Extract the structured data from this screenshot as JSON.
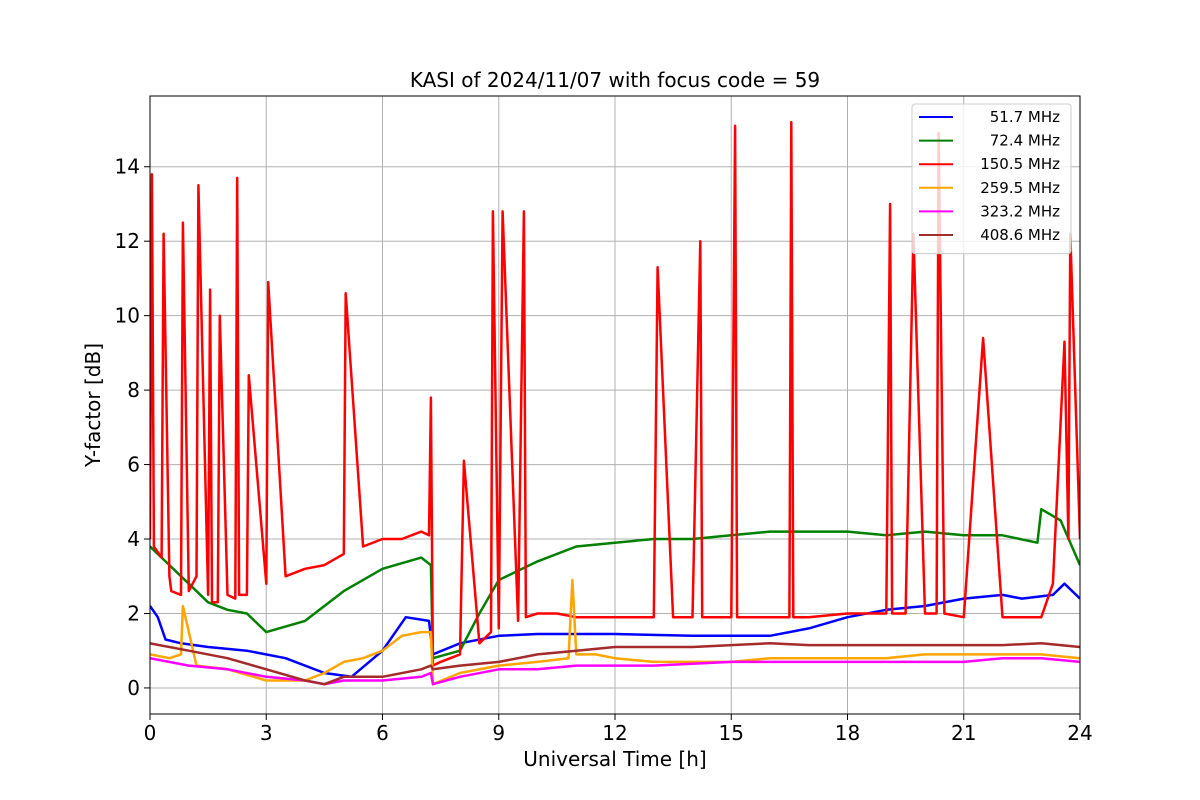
{
  "chart_data": {
    "type": "line",
    "title": "KASI of 2024/11/07 with focus code = 59",
    "xlabel": "Universal Time [h]",
    "ylabel": "Y-factor [dB]",
    "xlim": [
      0,
      24
    ],
    "ylim": [
      -0.7,
      15.9
    ],
    "xticks": [
      0,
      3,
      6,
      9,
      12,
      15,
      18,
      21,
      24
    ],
    "yticks": [
      0,
      2,
      4,
      6,
      8,
      10,
      12,
      14
    ],
    "grid": true,
    "legend_position": "top-right",
    "series": [
      {
        "name": "51.7 MHz",
        "color": "#0000ff",
        "x": [
          0,
          0.2,
          0.4,
          0.8,
          1.5,
          2.5,
          3.5,
          4.5,
          5.2,
          6,
          6.6,
          7.2,
          7.3,
          8,
          9,
          10,
          12,
          14,
          16,
          17,
          18,
          19,
          20,
          21,
          22,
          22.5,
          23.3,
          23.6,
          24
        ],
        "y": [
          2.2,
          1.9,
          1.3,
          1.2,
          1.1,
          1.0,
          0.8,
          0.4,
          0.3,
          1.0,
          1.9,
          1.8,
          0.9,
          1.2,
          1.4,
          1.45,
          1.45,
          1.4,
          1.4,
          1.6,
          1.9,
          2.1,
          2.2,
          2.4,
          2.5,
          2.4,
          2.5,
          2.8,
          2.4
        ]
      },
      {
        "name": "72.4 MHz",
        "color": "#008000",
        "x": [
          0,
          0.5,
          1,
          1.5,
          2,
          2.5,
          3,
          4,
          5,
          6,
          7,
          7.25,
          7.3,
          8,
          8.5,
          9,
          10,
          11,
          12,
          13,
          14,
          15,
          16,
          17,
          18,
          19,
          20,
          21,
          22,
          22.9,
          23,
          23.5,
          24
        ],
        "y": [
          3.8,
          3.3,
          2.8,
          2.3,
          2.1,
          2.0,
          1.5,
          1.8,
          2.6,
          3.2,
          3.5,
          3.3,
          0.8,
          1.0,
          2.0,
          2.9,
          3.4,
          3.8,
          3.9,
          4.0,
          4.0,
          4.1,
          4.2,
          4.2,
          4.2,
          4.1,
          4.2,
          4.1,
          4.1,
          3.9,
          4.8,
          4.5,
          3.3
        ]
      },
      {
        "name": "150.5 MHz",
        "color": "#ff0000",
        "x": [
          0,
          0.05,
          0.1,
          0.3,
          0.35,
          0.5,
          0.55,
          0.8,
          0.85,
          1.0,
          1.2,
          1.25,
          1.5,
          1.55,
          1.6,
          1.75,
          1.8,
          2.0,
          2.2,
          2.25,
          2.3,
          2.5,
          2.55,
          3.0,
          3.05,
          3.5,
          4.0,
          4.5,
          5.0,
          5.05,
          5.5,
          6.0,
          6.5,
          7.0,
          7.2,
          7.25,
          7.3,
          7.5,
          8.0,
          8.1,
          8.5,
          8.8,
          8.85,
          9.0,
          9.1,
          9.5,
          9.65,
          9.7,
          10.0,
          10.5,
          11.0,
          11.5,
          12.0,
          12.5,
          13.0,
          13.1,
          13.5,
          14.0,
          14.2,
          14.25,
          14.5,
          15.0,
          15.1,
          15.15,
          15.5,
          16.0,
          16.5,
          16.55,
          16.6,
          17.0,
          18.0,
          19.0,
          19.1,
          19.15,
          19.5,
          19.7,
          20.0,
          20.3,
          20.35,
          20.5,
          21.0,
          21.5,
          22.0,
          22.5,
          23.0,
          23.3,
          23.6,
          23.7,
          23.75,
          24.0
        ],
        "y": [
          4.0,
          13.8,
          3.8,
          3.5,
          12.2,
          3.0,
          2.6,
          2.5,
          12.5,
          2.6,
          3.0,
          13.5,
          2.5,
          10.7,
          2.3,
          2.3,
          10.0,
          2.5,
          2.4,
          13.7,
          2.5,
          2.5,
          8.4,
          2.8,
          10.9,
          3.0,
          3.2,
          3.3,
          3.6,
          10.6,
          3.8,
          4.0,
          4.0,
          4.2,
          4.1,
          7.8,
          0.6,
          0.7,
          0.9,
          6.1,
          1.2,
          1.5,
          12.8,
          1.6,
          12.8,
          1.8,
          12.8,
          1.9,
          2.0,
          2.0,
          1.9,
          1.9,
          1.9,
          1.9,
          1.9,
          11.3,
          1.9,
          1.9,
          12.0,
          1.9,
          1.9,
          1.9,
          15.1,
          1.9,
          1.9,
          1.9,
          1.9,
          15.2,
          1.9,
          1.9,
          2.0,
          2.0,
          13.0,
          2.0,
          2.0,
          12.2,
          2.0,
          2.0,
          14.9,
          2.0,
          1.9,
          9.4,
          1.9,
          1.9,
          1.9,
          2.8,
          9.3,
          4.0,
          12.2,
          4.0
        ]
      },
      {
        "name": "259.5 MHz",
        "color": "#ffa500",
        "x": [
          0,
          0.5,
          0.8,
          0.85,
          1.2,
          2,
          3,
          4,
          4.5,
          5,
          5.5,
          6,
          6.5,
          7,
          7.25,
          7.3,
          8,
          9,
          10,
          10.8,
          10.9,
          11,
          11.5,
          12,
          13,
          14,
          15,
          16,
          17,
          18,
          19,
          20,
          21,
          22,
          23,
          24
        ],
        "y": [
          0.9,
          0.8,
          0.9,
          2.2,
          0.6,
          0.5,
          0.2,
          0.2,
          0.4,
          0.7,
          0.8,
          1.0,
          1.4,
          1.5,
          1.5,
          0.1,
          0.4,
          0.6,
          0.7,
          0.8,
          2.9,
          0.9,
          0.9,
          0.8,
          0.7,
          0.7,
          0.7,
          0.8,
          0.8,
          0.8,
          0.8,
          0.9,
          0.9,
          0.9,
          0.9,
          0.8
        ]
      },
      {
        "name": "323.2 MHz",
        "color": "#ff00ff",
        "x": [
          0,
          1,
          2,
          3,
          4,
          4.5,
          5,
          6,
          7,
          7.25,
          7.3,
          8,
          9,
          9.5,
          10,
          11,
          12,
          13,
          14,
          15,
          16,
          17,
          18,
          19,
          20,
          21,
          22,
          23,
          24
        ],
        "y": [
          0.8,
          0.6,
          0.5,
          0.3,
          0.2,
          0.1,
          0.2,
          0.2,
          0.3,
          0.4,
          0.1,
          0.3,
          0.5,
          0.5,
          0.5,
          0.6,
          0.6,
          0.6,
          0.65,
          0.7,
          0.7,
          0.7,
          0.7,
          0.7,
          0.7,
          0.7,
          0.8,
          0.8,
          0.7
        ]
      },
      {
        "name": "408.6 MHz",
        "color": "#a52a2a",
        "x": [
          0,
          1,
          2,
          3,
          4,
          4.5,
          5,
          5.5,
          6,
          7,
          7.25,
          7.3,
          8,
          9,
          10,
          11,
          12,
          13,
          14,
          15,
          16,
          17,
          18,
          19,
          20,
          21,
          22,
          23,
          24
        ],
        "y": [
          1.2,
          1.0,
          0.8,
          0.5,
          0.2,
          0.1,
          0.3,
          0.3,
          0.3,
          0.5,
          0.6,
          0.5,
          0.6,
          0.7,
          0.9,
          1.0,
          1.1,
          1.1,
          1.1,
          1.15,
          1.2,
          1.15,
          1.15,
          1.15,
          1.15,
          1.15,
          1.15,
          1.2,
          1.1
        ]
      }
    ]
  }
}
